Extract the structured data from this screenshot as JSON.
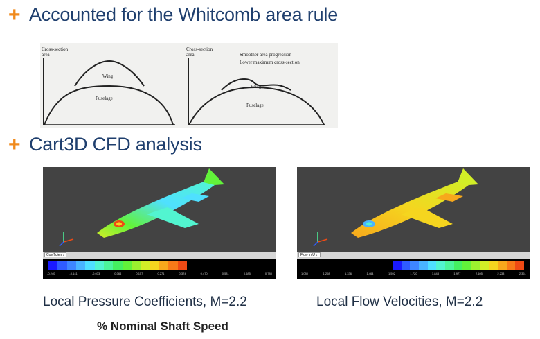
{
  "bullets": [
    {
      "marker": "+",
      "text": "Accounted for the Whitcomb area rule"
    },
    {
      "marker": "+",
      "text": "Cart3D CFD analysis"
    }
  ],
  "area_rule_sketch": {
    "left": {
      "axis_label_line1": "Cross-section",
      "axis_label_line2": "area",
      "wing_label": "Wing",
      "fuselage_label": "Fuselage"
    },
    "right": {
      "axis_label_line1": "Cross-section",
      "axis_label_line2": "area",
      "note_line1": "Smoother area progression",
      "note_line2": "Lower maximum cross-section",
      "wing_label": "Wing",
      "fuselage_label": "Fuselage"
    }
  },
  "cfd_panels": [
    {
      "dropdown": "Coefficien ↕",
      "colorbar_colors": [
        "#1a1aff",
        "#2f5cff",
        "#3e86ff",
        "#49b4ff",
        "#4fe0ff",
        "#52f5d0",
        "#4cf59a",
        "#45f060",
        "#62f23a",
        "#9bf12f",
        "#d2ee27",
        "#f5d51f",
        "#f7a81c",
        "#f77a18",
        "#ef4a14"
      ],
      "colorbar_ticks": [
        "-0.240",
        "-0.141",
        "-0.033",
        "0.064",
        "0.157",
        "0.271",
        "0.374",
        "0.470",
        "0.581",
        "0.685",
        "0.780"
      ]
    },
    {
      "dropdown": "Flow in U ↕",
      "colorbar_colors": [
        "#1a1aff",
        "#2f5cff",
        "#3e86ff",
        "#49b4ff",
        "#4fe0ff",
        "#52f5d0",
        "#4cf59a",
        "#45f060",
        "#62f23a",
        "#9bf12f",
        "#d2ee27",
        "#f5d51f",
        "#f7a81c",
        "#f77a18",
        "#ef4a14"
      ],
      "colorbar_ticks": [
        "1.080",
        "1.208",
        "1.336",
        "1.464",
        "1.592",
        "1.720",
        "1.848",
        "1.977",
        "2.105",
        "2.233",
        "2.361"
      ]
    }
  ],
  "captions": [
    "Local Pressure Coefficients, M=2.2",
    "Local Flow Velocities, M=2.2"
  ],
  "note": "% Nominal Shaft Speed",
  "colors": {
    "accent": "#f08a1c",
    "heading": "#1f3f6e"
  }
}
